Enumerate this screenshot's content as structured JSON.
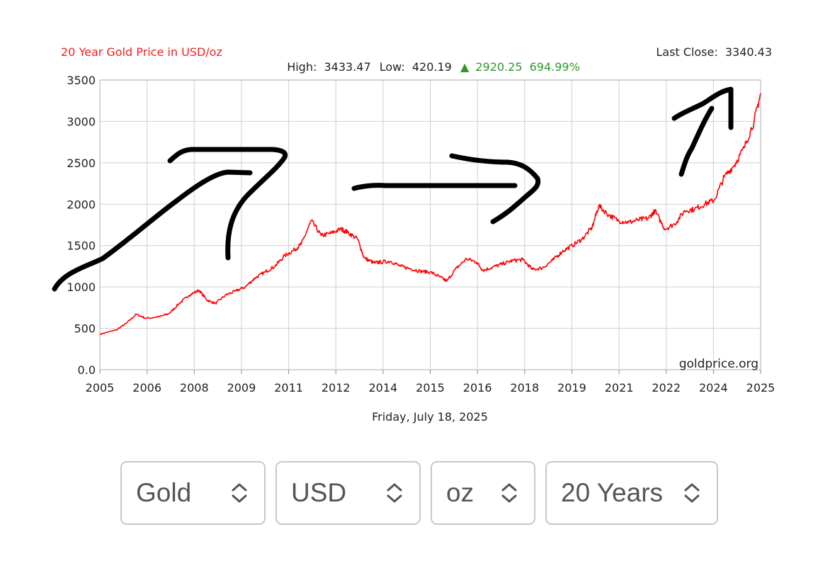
{
  "chart_data": {
    "type": "line",
    "title": "20 Year Gold Price in USD/oz",
    "stats": {
      "high_label": "High:",
      "high": "3433.47",
      "low_label": "Low:",
      "low": "420.19",
      "change_arrow": "▲",
      "change": "2920.25",
      "change_pct": "694.99%"
    },
    "last_close_label": "Last Close:",
    "last_close": "3340.43",
    "date": "Friday, July 18, 2025",
    "watermark": "goldprice.org",
    "xlabel": "",
    "ylabel": "",
    "ylim": [
      0,
      3500
    ],
    "yticks": [
      "0.0",
      "500",
      "1000",
      "1500",
      "2000",
      "2500",
      "3000",
      "3500"
    ],
    "xlim": [
      2005.5,
      2025.5
    ],
    "xtick_labels": [
      "2005",
      "2006",
      "2008",
      "2009",
      "2011",
      "2012",
      "2014",
      "2015",
      "2016",
      "2018",
      "2019",
      "2021",
      "2022",
      "2024",
      "2025"
    ],
    "grid": true,
    "series": [
      {
        "color": "#ff0000",
        "x": [
          2005.5,
          2006.0,
          2006.3,
          2006.6,
          2006.9,
          2007.3,
          2007.6,
          2007.9,
          2008.2,
          2008.5,
          2008.75,
          2009.0,
          2009.3,
          2009.6,
          2009.9,
          2010.2,
          2010.5,
          2010.8,
          2011.1,
          2011.4,
          2011.6,
          2011.9,
          2012.2,
          2012.5,
          2012.8,
          2013.0,
          2013.3,
          2013.5,
          2013.8,
          2014.0,
          2014.3,
          2014.6,
          2014.9,
          2015.2,
          2015.5,
          2015.8,
          2016.0,
          2016.3,
          2016.6,
          2016.9,
          2017.1,
          2017.4,
          2017.7,
          2018.0,
          2018.3,
          2018.6,
          2018.9,
          2019.2,
          2019.5,
          2019.8,
          2020.1,
          2020.4,
          2020.6,
          2020.9,
          2021.2,
          2021.5,
          2021.8,
          2022.1,
          2022.3,
          2022.6,
          2022.9,
          2023.2,
          2023.5,
          2023.8,
          2024.1,
          2024.4,
          2024.7,
          2025.0,
          2025.3,
          2025.5
        ],
        "values": [
          430,
          480,
          560,
          670,
          620,
          640,
          680,
          800,
          900,
          960,
          840,
          800,
          900,
          950,
          1000,
          1110,
          1180,
          1250,
          1380,
          1450,
          1520,
          1800,
          1620,
          1650,
          1700,
          1660,
          1580,
          1350,
          1290,
          1300,
          1310,
          1250,
          1220,
          1190,
          1180,
          1120,
          1070,
          1230,
          1340,
          1300,
          1200,
          1240,
          1280,
          1320,
          1330,
          1210,
          1230,
          1320,
          1430,
          1500,
          1580,
          1720,
          1980,
          1870,
          1800,
          1780,
          1810,
          1830,
          1920,
          1700,
          1760,
          1920,
          1940,
          2000,
          2050,
          2330,
          2470,
          2680,
          3000,
          3340
        ]
      }
    ]
  },
  "controls": [
    {
      "label": "Gold",
      "icon": "updown-chevron-icon"
    },
    {
      "label": "USD",
      "icon": "updown-chevron-icon"
    },
    {
      "label": "oz",
      "icon": "updown-chevron-icon"
    },
    {
      "label": "20 Years",
      "icon": "updown-chevron-icon"
    }
  ]
}
